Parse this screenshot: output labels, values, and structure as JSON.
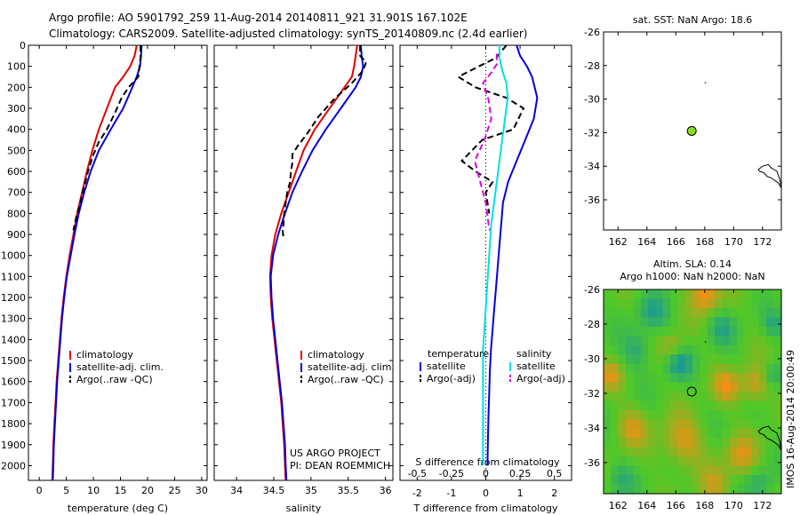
{
  "title": {
    "line1": "Argo profile: AO 5901792_259 11-Aug-2014 20140811_921 31.901S 167.102E",
    "line2": "Climatology: CARS2009. Satellite-adjusted climatology: synTS_20140809.nc (2.4d earlier)"
  },
  "credits": {
    "line1": "US ARGO PROJECT",
    "line2": "PI: DEAN ROEMMICH"
  },
  "side_stamp": "IMOS 16-Aug-2014 20:00:49",
  "colors": {
    "climatology": "#e00000",
    "satellite": "#0000e0",
    "argo": "#000000",
    "sat_diff": "#00e0e0",
    "argo_diff": "#e000e0",
    "marker": "#88dd22",
    "map_bg": "#ffffff"
  },
  "chart_data": [
    {
      "type": "line",
      "name": "temperature-profile",
      "xlabel": "temperature (deg C)",
      "ylabel": "",
      "xlim": [
        -2,
        31
      ],
      "ylim": [
        2070,
        0
      ],
      "xticks": [
        0,
        5,
        10,
        15,
        20,
        25,
        30
      ],
      "yticks": [
        0,
        100,
        200,
        300,
        400,
        500,
        600,
        700,
        800,
        900,
        1000,
        1100,
        1200,
        1300,
        1400,
        1500,
        1600,
        1700,
        1800,
        1900,
        2000
      ],
      "legend": [
        "climatology",
        "satellite-adj. clim.",
        "Argo(..raw -QC)"
      ],
      "series": [
        {
          "name": "climatology",
          "color_key": "climatology",
          "dash": "solid",
          "x": [
            18.0,
            17.6,
            16.8,
            15.5,
            14.0,
            12.5,
            11.0,
            9.8,
            8.8,
            7.9,
            7.0,
            6.3,
            5.6,
            5.0,
            4.5,
            4.1,
            3.8,
            3.5,
            3.2,
            3.0,
            2.8,
            2.6,
            2.5,
            2.4
          ],
          "y": [
            0,
            50,
            100,
            150,
            200,
            300,
            400,
            500,
            600,
            700,
            800,
            900,
            1000,
            1100,
            1200,
            1300,
            1400,
            1500,
            1600,
            1700,
            1800,
            1900,
            2000,
            2070
          ]
        },
        {
          "name": "satellite-adj. clim.",
          "color_key": "satellite",
          "dash": "solid",
          "x": [
            18.9,
            18.8,
            18.6,
            18.0,
            17.2,
            15.5,
            13.2,
            11.0,
            9.5,
            8.3,
            7.3,
            6.5,
            5.8,
            5.1,
            4.6,
            4.2,
            3.9,
            3.6,
            3.3,
            3.1,
            2.9,
            2.7,
            2.6,
            2.5
          ],
          "y": [
            0,
            50,
            100,
            150,
            200,
            300,
            400,
            500,
            600,
            700,
            800,
            900,
            1000,
            1100,
            1200,
            1300,
            1400,
            1500,
            1600,
            1700,
            1800,
            1900,
            2000,
            2070
          ]
        },
        {
          "name": "Argo(..raw -QC)",
          "color_key": "argo",
          "dash": "dash",
          "x": [
            18.7,
            18.7,
            18.5,
            18.3,
            16.5,
            15.2,
            14.0,
            12.5,
            11.0,
            10.0,
            9.5,
            9.0,
            8.5,
            8.0,
            7.5,
            6.8,
            6.3
          ],
          "y": [
            0,
            60,
            100,
            150,
            200,
            250,
            320,
            400,
            460,
            520,
            560,
            600,
            650,
            700,
            760,
            820,
            880
          ]
        }
      ]
    },
    {
      "type": "line",
      "name": "salinity-profile",
      "xlabel": "salinity",
      "ylabel": "",
      "xlim": [
        33.7,
        36.1
      ],
      "ylim": [
        2070,
        0
      ],
      "xticks": [
        34,
        34.5,
        35,
        35.5,
        36
      ],
      "legend": [
        "climatology",
        "satellite-adj. clim.",
        "Argo(..raw -QC)"
      ],
      "series": [
        {
          "name": "climatology",
          "color_key": "climatology",
          "dash": "solid",
          "x": [
            35.62,
            35.6,
            35.58,
            35.55,
            35.45,
            35.25,
            35.05,
            34.9,
            34.8,
            34.7,
            34.6,
            34.52,
            34.47,
            34.45,
            34.46,
            34.48,
            34.51,
            34.54,
            34.57,
            34.6,
            34.62,
            34.64,
            34.65,
            34.66
          ],
          "y": [
            0,
            50,
            100,
            150,
            200,
            300,
            400,
            500,
            600,
            700,
            800,
            900,
            1000,
            1100,
            1200,
            1300,
            1400,
            1500,
            1600,
            1700,
            1800,
            1900,
            2000,
            2070
          ]
        },
        {
          "name": "satellite-adj. clim.",
          "color_key": "satellite",
          "dash": "solid",
          "x": [
            35.67,
            35.68,
            35.7,
            35.67,
            35.6,
            35.4,
            35.2,
            35.02,
            34.88,
            34.75,
            34.65,
            34.56,
            34.49,
            34.46,
            34.47,
            34.49,
            34.52,
            34.55,
            34.58,
            34.61,
            34.63,
            34.65,
            34.66,
            34.67
          ],
          "y": [
            0,
            50,
            100,
            150,
            200,
            300,
            400,
            500,
            600,
            700,
            800,
            900,
            1000,
            1100,
            1200,
            1300,
            1400,
            1500,
            1600,
            1700,
            1800,
            1900,
            2000,
            2070
          ]
        },
        {
          "name": "Argo(..raw -QC)",
          "color_key": "argo",
          "dash": "dash",
          "x": [
            35.66,
            35.66,
            35.74,
            35.7,
            35.55,
            35.3,
            35.1,
            34.95,
            34.82,
            34.75,
            34.75,
            34.73,
            34.72,
            34.68,
            34.66,
            34.64,
            34.63,
            34.62,
            34.63
          ],
          "y": [
            0,
            50,
            80,
            120,
            180,
            260,
            340,
            420,
            480,
            520,
            560,
            600,
            650,
            700,
            750,
            800,
            850,
            880,
            920
          ]
        }
      ]
    },
    {
      "type": "line",
      "name": "difference-profile",
      "xlabel": "T difference from climatology",
      "xlabel_top": "S difference from climatology",
      "ylabel": "",
      "xlim": [
        -2.5,
        2.5
      ],
      "ylim": [
        2070,
        0
      ],
      "xticks_T": [
        -2,
        -1,
        0,
        1,
        2
      ],
      "xticks_S": [
        "-0.5",
        "-0.25",
        "0",
        "0.25",
        "0.5"
      ],
      "legend": {
        "temperature_header": "temperature",
        "salinity_header": "salinity",
        "temperature": [
          "satellite",
          "Argo(-adj)"
        ],
        "salinity": [
          "satellite",
          "Argo(-adj)"
        ]
      },
      "series": [
        {
          "name": "temperature satellite",
          "color_key": "satellite",
          "dash": "solid",
          "x": [
            0.9,
            1.0,
            1.2,
            1.35,
            1.5,
            1.4,
            1.15,
            0.9,
            0.65,
            0.5,
            0.45,
            0.4,
            0.35,
            0.3,
            0.25,
            0.2,
            0.15,
            0.12,
            0.1,
            0.08,
            0.06,
            0.05
          ],
          "y": [
            0,
            50,
            100,
            150,
            250,
            350,
            450,
            550,
            650,
            750,
            850,
            950,
            1050,
            1150,
            1250,
            1350,
            1450,
            1550,
            1650,
            1750,
            1900,
            2000
          ]
        },
        {
          "name": "temperature Argo(-adj)",
          "color_key": "argo",
          "dash": "dash",
          "x": [
            0.6,
            0.3,
            -0.2,
            -0.8,
            -0.3,
            0.6,
            1.1,
            0.8,
            -0.1,
            -0.7,
            -0.3,
            0.2,
            0.0,
            0.1
          ],
          "y": [
            0,
            60,
            100,
            150,
            200,
            250,
            300,
            400,
            450,
            550,
            600,
            650,
            700,
            800
          ]
        },
        {
          "name": "salinity satellite",
          "color_key": "sat_diff",
          "dash": "solid",
          "x": [
            0.1,
            0.1,
            0.12,
            0.15,
            0.16,
            0.14,
            0.12,
            0.1,
            0.08,
            0.06,
            0.04,
            0.03,
            0.02,
            0.01,
            0.0,
            -0.01,
            -0.02,
            -0.02,
            -0.02,
            -0.02,
            -0.02
          ],
          "y": [
            0,
            60,
            120,
            180,
            250,
            350,
            450,
            550,
            650,
            750,
            850,
            950,
            1050,
            1150,
            1250,
            1350,
            1450,
            1600,
            1750,
            1900,
            2000
          ]
        },
        {
          "name": "salinity Argo(-adj)",
          "color_key": "argo_diff",
          "dash": "dash",
          "x": [
            0.08,
            0.08,
            0.04,
            -0.02,
            0.02,
            0.04,
            -0.01,
            -0.08,
            -0.04,
            0.0,
            0.02,
            0.03
          ],
          "y": [
            40,
            90,
            130,
            180,
            260,
            350,
            450,
            550,
            650,
            750,
            850,
            880
          ]
        }
      ]
    },
    {
      "type": "scatter",
      "name": "sst-map",
      "title": "sat. SST: NaN Argo: 18.6",
      "xlim": [
        161.0,
        173.3
      ],
      "ylim": [
        -37.8,
        -26.0
      ],
      "xticks": [
        162,
        164,
        166,
        168,
        170,
        172
      ],
      "yticks": [
        -26,
        -28,
        -30,
        -32,
        -34,
        -36
      ],
      "points": [
        {
          "x": 167.1,
          "y": -31.9
        }
      ],
      "coast": [
        {
          "x": [
            171.7,
            172.0,
            172.4,
            172.6,
            172.8,
            173.0,
            173.2,
            173.3,
            173.1,
            172.6,
            172.3,
            172.1,
            171.8,
            171.7
          ],
          "y": [
            -34.2,
            -34.0,
            -33.9,
            -34.1,
            -34.2,
            -34.3,
            -34.8,
            -35.3,
            -35.0,
            -34.7,
            -34.6,
            -34.4,
            -34.3,
            -34.2
          ]
        },
        {
          "x": [
            168.0,
            168.1
          ],
          "y": [
            -29.05,
            -29.0
          ]
        }
      ]
    },
    {
      "type": "heatmap",
      "name": "sla-map",
      "title_line1": "Altim. SLA: 0.14",
      "title_line2": "Argo h1000: NaN h2000: NaN",
      "xlim": [
        161.0,
        173.3
      ],
      "ylim": [
        -37.8,
        -26.0
      ],
      "xticks": [
        162,
        164,
        166,
        168,
        170,
        172
      ],
      "yticks": [
        -26,
        -28,
        -30,
        -32,
        -34,
        -36
      ],
      "points": [
        {
          "x": 167.1,
          "y": -31.9
        }
      ],
      "features": [
        {
          "x": 168.0,
          "y": -26.3,
          "r": 1.0,
          "c": 1.0
        },
        {
          "x": 169.5,
          "y": -31.6,
          "r": 0.9,
          "c": 0.85
        },
        {
          "x": 171.5,
          "y": -31.5,
          "r": 1.0,
          "c": 0.8
        },
        {
          "x": 166.5,
          "y": -34.8,
          "r": 1.4,
          "c": 0.8
        },
        {
          "x": 163.0,
          "y": -34.0,
          "r": 1.1,
          "c": 0.7
        },
        {
          "x": 161.5,
          "y": -31.0,
          "r": 0.8,
          "c": 0.7
        },
        {
          "x": 170.5,
          "y": -35.6,
          "r": 1.1,
          "c": 0.75
        },
        {
          "x": 165.8,
          "y": -29.4,
          "r": 0.8,
          "c": 0.65
        },
        {
          "x": 168.7,
          "y": -37.3,
          "r": 1.0,
          "c": 0.6
        },
        {
          "x": 166.2,
          "y": -30.2,
          "r": 0.9,
          "c": -0.9
        },
        {
          "x": 164.4,
          "y": -27.3,
          "r": 1.0,
          "c": -0.7
        },
        {
          "x": 169.2,
          "y": -28.3,
          "r": 0.9,
          "c": -0.6
        },
        {
          "x": 163.3,
          "y": -29.5,
          "r": 1.0,
          "c": -0.6
        },
        {
          "x": 172.8,
          "y": -28.0,
          "r": 0.7,
          "c": -0.65
        },
        {
          "x": 171.8,
          "y": -37.2,
          "r": 0.9,
          "c": -0.5
        },
        {
          "x": 162.2,
          "y": -37.0,
          "r": 0.9,
          "c": -0.5
        },
        {
          "x": 172.7,
          "y": -31.0,
          "r": 0.7,
          "c": -0.6
        }
      ],
      "coast": [
        {
          "x": [
            171.7,
            172.0,
            172.4,
            172.6,
            172.8,
            173.0,
            173.2,
            173.3,
            173.1,
            172.6,
            172.3,
            172.1,
            171.8,
            171.7
          ],
          "y": [
            -34.2,
            -34.0,
            -33.9,
            -34.1,
            -34.2,
            -34.3,
            -34.8,
            -35.3,
            -35.0,
            -34.7,
            -34.6,
            -34.4,
            -34.3,
            -34.2
          ]
        },
        {
          "x": [
            168.0,
            168.1
          ],
          "y": [
            -29.05,
            -29.0
          ]
        }
      ]
    }
  ]
}
